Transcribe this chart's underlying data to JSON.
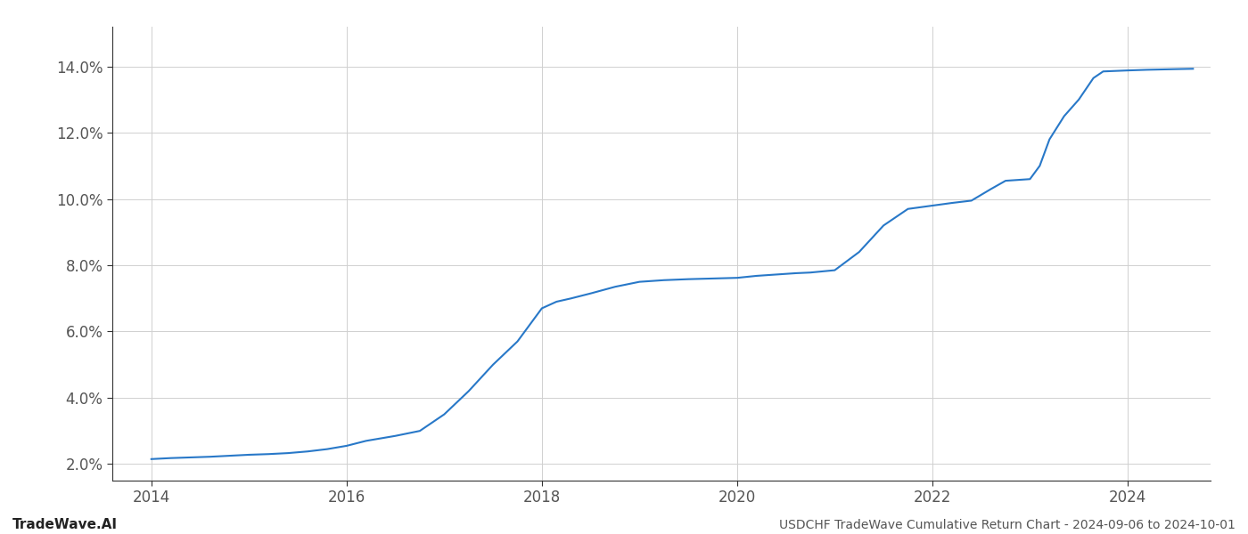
{
  "title": "USDCHF TradeWave Cumulative Return Chart - 2024-09-06 to 2024-10-01",
  "watermark": "TradeWave.AI",
  "line_color": "#2878c8",
  "line_width": 1.5,
  "background_color": "#ffffff",
  "grid_color": "#d0d0d0",
  "x_values": [
    2014.0,
    2014.2,
    2014.4,
    2014.6,
    2014.8,
    2015.0,
    2015.2,
    2015.4,
    2015.6,
    2015.8,
    2016.0,
    2016.2,
    2016.5,
    2016.75,
    2017.0,
    2017.25,
    2017.5,
    2017.75,
    2018.0,
    2018.15,
    2018.3,
    2018.5,
    2018.75,
    2019.0,
    2019.25,
    2019.5,
    2019.75,
    2020.0,
    2020.2,
    2020.4,
    2020.6,
    2020.75,
    2021.0,
    2021.25,
    2021.5,
    2021.75,
    2022.0,
    2022.2,
    2022.4,
    2022.6,
    2022.75,
    2023.0,
    2023.1,
    2023.2,
    2023.35,
    2023.5,
    2023.65,
    2023.75,
    2024.0,
    2024.2,
    2024.5,
    2024.67
  ],
  "y_values": [
    2.15,
    2.18,
    2.2,
    2.22,
    2.25,
    2.28,
    2.3,
    2.33,
    2.38,
    2.45,
    2.55,
    2.7,
    2.85,
    3.0,
    3.5,
    4.2,
    5.0,
    5.7,
    6.7,
    6.9,
    7.0,
    7.15,
    7.35,
    7.5,
    7.55,
    7.58,
    7.6,
    7.62,
    7.68,
    7.72,
    7.76,
    7.78,
    7.85,
    8.4,
    9.2,
    9.7,
    9.8,
    9.88,
    9.95,
    10.3,
    10.55,
    10.6,
    11.0,
    11.8,
    12.5,
    13.0,
    13.65,
    13.85,
    13.88,
    13.9,
    13.92,
    13.93
  ],
  "xlim": [
    2013.6,
    2024.85
  ],
  "ylim": [
    1.5,
    15.2
  ],
  "yticks": [
    2.0,
    4.0,
    6.0,
    8.0,
    10.0,
    12.0,
    14.0
  ],
  "xticks": [
    2014,
    2016,
    2018,
    2020,
    2022,
    2024
  ]
}
